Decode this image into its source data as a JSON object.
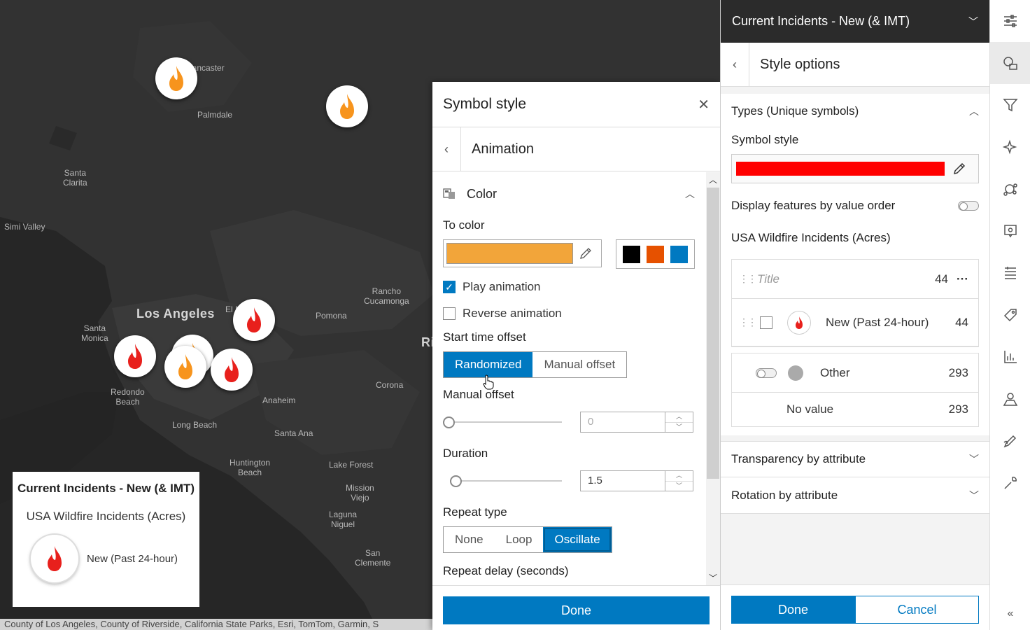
{
  "map": {
    "places": [
      {
        "name": "Lancaster"
      },
      {
        "name": "Palmdale"
      },
      {
        "name": "Santa\nClarita"
      },
      {
        "name": "Simi Valley"
      },
      {
        "name": "Rancho\nCucamonga"
      },
      {
        "name": "Pomona"
      },
      {
        "name": "Los Angeles"
      },
      {
        "name": "El Monte"
      },
      {
        "name": "Santa\nMonica"
      },
      {
        "name": "Redondo\nBeach"
      },
      {
        "name": "Corona"
      },
      {
        "name": "Anaheim"
      },
      {
        "name": "Long Beach"
      },
      {
        "name": "Santa Ana"
      },
      {
        "name": "Huntington\nBeach"
      },
      {
        "name": "Lake Forest"
      },
      {
        "name": "Mission\nViejo"
      },
      {
        "name": "Laguna\nNiguel"
      },
      {
        "name": "San\nClemente"
      },
      {
        "name": "Ri"
      }
    ],
    "attribution": "County of Los Angeles, County of Riverside, California State Parks, Esri, TomTom, Garmin, S"
  },
  "legend": {
    "title": "Current Incidents - New (& IMT)",
    "layer": "USA Wildfire Incidents (Acres)",
    "item_label": "New (Past 24-hour)"
  },
  "symbol_style": {
    "title": "Symbol style",
    "close_icon": "close-icon",
    "subtitle": "Animation",
    "color_section": "Color",
    "to_color_label": "To color",
    "to_color": "#f2a53a",
    "presets": [
      "#000000",
      "#e65100",
      "#0079c1"
    ],
    "play_animation": "Play animation",
    "play_animation_checked": true,
    "reverse_animation": "Reverse animation",
    "reverse_animation_checked": false,
    "start_time_offset_label": "Start time offset",
    "offset_options": [
      "Randomized",
      "Manual offset"
    ],
    "offset_selected": "Randomized",
    "manual_offset_label": "Manual offset",
    "manual_offset_value": "0",
    "duration_label": "Duration",
    "duration_value": "1.5",
    "repeat_type_label": "Repeat type",
    "repeat_options": [
      "None",
      "Loop",
      "Oscillate"
    ],
    "repeat_selected": "Oscillate",
    "repeat_delay_label": "Repeat delay (seconds)",
    "done_label": "Done"
  },
  "style_panel": {
    "layer_name": "Current Incidents - New (& IMT)",
    "title": "Style options",
    "types_section": "Types (Unique symbols)",
    "symbol_style_label": "Symbol style",
    "symbol_color": "#ff0000",
    "display_by_value_order": "Display features by value order",
    "field_name": "USA Wildfire Incidents (Acres)",
    "list_title_placeholder": "Title",
    "list_total": "44",
    "item_label": "New (Past 24-hour)",
    "item_count": "44",
    "other_label": "Other",
    "other_count": "293",
    "no_value_label": "No value",
    "no_value_count": "293",
    "transparency_section": "Transparency by attribute",
    "rotation_section": "Rotation by attribute",
    "done_label": "Done",
    "cancel_label": "Cancel"
  },
  "colors": {
    "accent": "#0079c1",
    "header_dark": "#2b2b2b",
    "map_bg": "#2e2e2e",
    "fire_red": "#e8201c",
    "fire_orange": "#f7941d"
  },
  "toolstrip": [
    "properties-icon",
    "styles-icon",
    "filter-icon",
    "effects-icon",
    "clustering-icon",
    "configure-popup-icon",
    "fields-icon",
    "labels-icon",
    "charts-icon",
    "map-tools-icon",
    "sketch-icon",
    "settings-icon",
    "collapse-icon"
  ]
}
